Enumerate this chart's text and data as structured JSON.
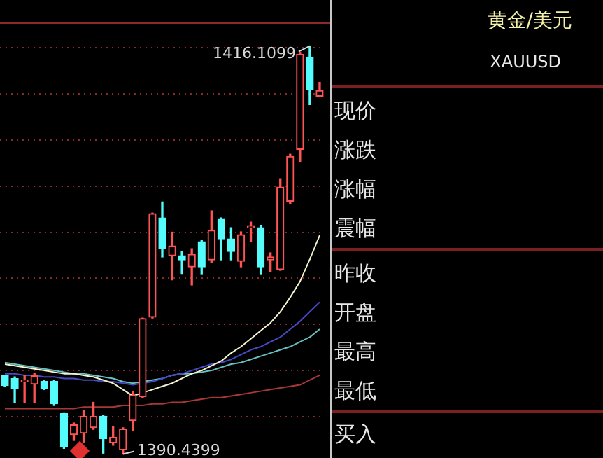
{
  "chart_data": [
    {
      "type": "candlestick",
      "categories": [
        null,
        null,
        null,
        null,
        null,
        null,
        null,
        null,
        null,
        null,
        null,
        null,
        null,
        null,
        null,
        null,
        null,
        null,
        null,
        null,
        null,
        null,
        null,
        null,
        null,
        null,
        null,
        null,
        null,
        null,
        null,
        null,
        null
      ],
      "ohlc": [
        [
          1395.37,
          1395.4,
          1394.7,
          1394.75
        ],
        [
          1395.19,
          1395.3,
          1393.7,
          1394.58
        ],
        [
          1395.0,
          1395.37,
          1393.7,
          1395.0
        ],
        [
          1394.84,
          1395.5,
          1393.7,
          1395.37
        ],
        [
          1395.02,
          1395.1,
          1394.5,
          1394.58
        ],
        [
          1395.02,
          1395.1,
          1393.5,
          1393.61
        ],
        [
          1392.99,
          1393.0,
          1390.8,
          1390.9
        ],
        [
          1391.67,
          1392.4,
          1391.3,
          1392.29
        ],
        [
          1391.76,
          1393.2,
          1391.2,
          1392.82
        ],
        [
          1392.11,
          1393.7,
          1392.0,
          1392.82
        ],
        [
          1392.82,
          1392.9,
          1390.5,
          1391.41
        ],
        [
          1391.15,
          1392.2,
          1391.0,
          1391.5
        ],
        [
          1390.71,
          1392.1,
          1390.4399,
          1392.02
        ],
        [
          1392.55,
          1394.4,
          1391.9,
          1394.13
        ],
        [
          1394.05,
          1399.0,
          1394.0,
          1398.97
        ],
        [
          1399.06,
          1405.6,
          1399.0,
          1405.56
        ],
        [
          1405.3,
          1406.3,
          1402.84,
          1403.36
        ],
        [
          1402.92,
          1404.4,
          1401.4,
          1403.54
        ],
        [
          1402.92,
          1403.2,
          1401.8,
          1402.66
        ],
        [
          1402.22,
          1403.36,
          1401.08,
          1403.01
        ],
        [
          1403.8,
          1403.9,
          1401.78,
          1402.22
        ],
        [
          1402.66,
          1405.74,
          1402.5,
          1404.51
        ],
        [
          1405.21,
          1405.3,
          1402.66,
          1403.98
        ],
        [
          1403.98,
          1404.68,
          1402.66,
          1403.19
        ],
        [
          1402.57,
          1404.42,
          1402.22,
          1404.24
        ],
        [
          1404.68,
          1405.03,
          1403.8,
          1404.7
        ],
        [
          1404.68,
          1404.8,
          1401.78,
          1402.22
        ],
        [
          1402.66,
          1403.1,
          1401.9,
          1402.84
        ],
        [
          1402.05,
          1407.76,
          1402.0,
          1407.23
        ],
        [
          1406.35,
          1409.3,
          1406.2,
          1409.16
        ],
        [
          1409.6,
          1415.7,
          1408.81,
          1415.58
        ],
        [
          1415.41,
          1416.1099,
          1412.42,
          1413.38
        ],
        [
          1412.95,
          1413.82,
          1412.95,
          1413.3
        ]
      ],
      "series": [
        {
          "type": "line",
          "color": "#f4f4d0",
          "values": [
            1396.1,
            1396.0,
            1395.9,
            1395.8,
            1395.7,
            1395.6,
            1395.5,
            1395.5,
            1395.4,
            1395.3,
            1395.1,
            1394.9,
            1394.5,
            1394.1,
            1394.3,
            1394.5,
            1394.7,
            1394.9,
            1395.2,
            1395.5,
            1395.7,
            1396.0,
            1396.3,
            1396.8,
            1397.2,
            1397.7,
            1398.2,
            1398.7,
            1399.4,
            1400.3,
            1401.3,
            1402.7,
            1404.2
          ]
        },
        {
          "type": "line",
          "color": "#4848c8",
          "values": [
            1395.5,
            1395.5,
            1395.4,
            1395.4,
            1395.3,
            1395.3,
            1395.2,
            1395.2,
            1395.1,
            1395.1,
            1395.0,
            1395.0,
            1394.9,
            1394.8,
            1394.9,
            1395.0,
            1395.2,
            1395.4,
            1395.5,
            1395.7,
            1395.9,
            1396.1,
            1396.2,
            1396.4,
            1396.7,
            1397.0,
            1397.2,
            1397.5,
            1397.8,
            1398.3,
            1398.8,
            1399.4,
            1400.0
          ]
        },
        {
          "type": "line",
          "color": "#68c0c0",
          "values": [
            1396.2,
            1396.1,
            1396.0,
            1395.9,
            1395.8,
            1395.7,
            1395.6,
            1395.5,
            1395.5,
            1395.4,
            1395.3,
            1395.2,
            1395.0,
            1394.9,
            1395.0,
            1395.1,
            1395.2,
            1395.4,
            1395.5,
            1395.5,
            1395.6,
            1395.7,
            1395.9,
            1396.1,
            1396.2,
            1396.4,
            1396.6,
            1396.8,
            1397.0,
            1397.2,
            1397.5,
            1397.8,
            1398.3
          ]
        },
        {
          "type": "line",
          "color": "#a83838",
          "values": [
            1393.3,
            1393.3,
            1393.3,
            1393.3,
            1393.3,
            1393.3,
            1393.3,
            1393.3,
            1393.4,
            1393.4,
            1393.4,
            1393.4,
            1393.5,
            1393.5,
            1393.5,
            1393.6,
            1393.6,
            1393.7,
            1393.7,
            1393.8,
            1393.9,
            1394.0,
            1394.0,
            1394.1,
            1394.2,
            1394.3,
            1394.4,
            1394.5,
            1394.6,
            1394.7,
            1394.8,
            1395.1,
            1395.4
          ]
        }
      ],
      "annotations": [
        "1416.1099",
        "1390.4399"
      ],
      "ylim": [
        1390.2,
        1417.5
      ],
      "yticks": [
        {
          "value": 1392.8,
          "label": null
        },
        {
          "value": 1395.7,
          "label": null
        },
        {
          "value": 1398.6,
          "label": null
        },
        {
          "value": 1401.5,
          "label": null
        },
        {
          "value": 1404.4,
          "label": null
        },
        {
          "value": 1407.3,
          "label": null
        },
        {
          "value": 1410.2,
          "label": null
        },
        {
          "value": 1413.1,
          "label": null
        },
        {
          "value": 1416.0,
          "label": null
        }
      ],
      "tick_labels": false,
      "grid": "y"
    },
    {
      "type": "other",
      "title": "黄金/美元",
      "subtitle": "XAUUSD",
      "annotations": [
        "现价",
        "涨跌",
        "涨幅",
        "震幅",
        "昨收",
        "开盘",
        "最高",
        "最低",
        "买入"
      ]
    }
  ]
}
